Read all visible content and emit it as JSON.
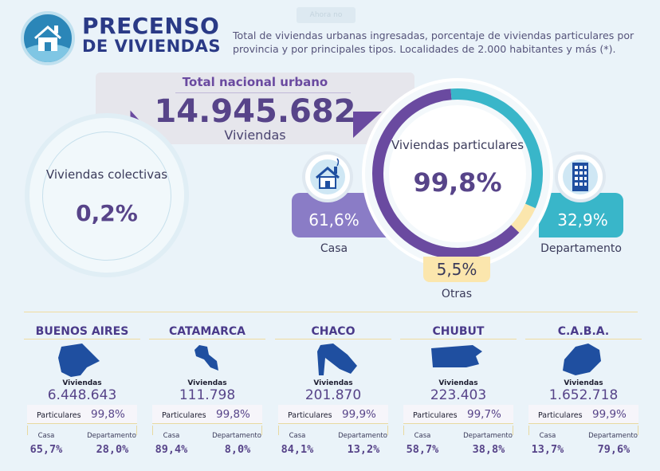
{
  "header": {
    "title_line1": "PRECENSO",
    "title_line2": "DE VIVIENDAS",
    "subtitle": "Total de viviendas urbanas ingresadas, porcentaje de viviendas particulares por provincia y por principales tipos. Localidades de 2.000 habitantes y más (*).",
    "ghost_tab": "Ahora no"
  },
  "total": {
    "label": "Total nacional urbano",
    "value": "14.945.682",
    "unit": "Viviendas"
  },
  "colectivas": {
    "label": "Viviendas colectivas",
    "value": "0,2%"
  },
  "particulares": {
    "label": "Viviendas particulares",
    "value": "99,8%",
    "casa": {
      "label": "Casa",
      "value": "61,6%",
      "share": 61.6
    },
    "otras": {
      "label": "Otras",
      "value": "5,5%",
      "share": 5.5
    },
    "departamento": {
      "label": "Departamento",
      "value": "32,9%",
      "share": 32.9
    }
  },
  "colors": {
    "purple": "#6a4aa0",
    "casa": "#8a7cc6",
    "departamento": "#39b6c9",
    "otras": "#fbe6ad",
    "navy": "#2a3a86",
    "map_blue": "#1f4fa0"
  },
  "provinces": [
    {
      "name": "BUENOS AIRES",
      "viviendas_label": "Viviendas",
      "viviendas": "6.448.643",
      "particulares_label": "Particulares",
      "particulares": "99,8%",
      "casa_label": "Casa",
      "casa": "65,7%",
      "depto_label": "Departamento",
      "depto": "28,0%"
    },
    {
      "name": "CATAMARCA",
      "viviendas_label": "Viviendas",
      "viviendas": "111.798",
      "particulares_label": "Particulares",
      "particulares": "99,8%",
      "casa_label": "Casa",
      "casa": "89,4%",
      "depto_label": "Departamento",
      "depto": "8,0%"
    },
    {
      "name": "CHACO",
      "viviendas_label": "Viviendas",
      "viviendas": "201.870",
      "particulares_label": "Particulares",
      "particulares": "99,9%",
      "casa_label": "Casa",
      "casa": "84,1%",
      "depto_label": "Departamento",
      "depto": "13,2%"
    },
    {
      "name": "CHUBUT",
      "viviendas_label": "Viviendas",
      "viviendas": "223.403",
      "particulares_label": "Particulares",
      "particulares": "99,7%",
      "casa_label": "Casa",
      "casa": "58,7%",
      "depto_label": "Departamento",
      "depto": "38,8%"
    },
    {
      "name": "C.A.B.A.",
      "viviendas_label": "Viviendas",
      "viviendas": "1.652.718",
      "particulares_label": "Particulares",
      "particulares": "99,9%",
      "casa_label": "Casa",
      "casa": "13,7%",
      "depto_label": "Departamento",
      "depto": "79,6%"
    }
  ]
}
